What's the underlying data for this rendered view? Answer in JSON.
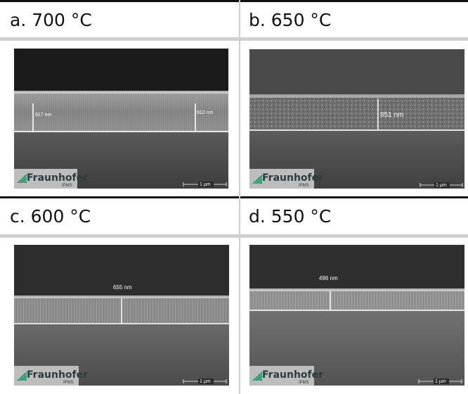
{
  "panels": [
    {
      "id": "a",
      "header": "a. 700 °C",
      "measurements": [
        "917 nm",
        "912 nm"
      ],
      "scale_bar": "1 µm",
      "logo": {
        "name": "Fraunhofer",
        "sub": "IPMS"
      }
    },
    {
      "id": "b",
      "header": "b. 650 °C",
      "measurements": [
        "851 nm"
      ],
      "scale_bar": "1 µm",
      "logo": {
        "name": "Fraunhofer",
        "sub": "IPMS"
      }
    },
    {
      "id": "c",
      "header": "c. 600 °C",
      "measurements": [
        "655 nm"
      ],
      "scale_bar": "1 µm",
      "logo": {
        "name": "Fraunhofer",
        "sub": "IPMS"
      }
    },
    {
      "id": "d",
      "header": "d. 550 °C",
      "measurements": [
        "496 nm"
      ],
      "scale_bar": "1 µm",
      "logo": {
        "name": "Fraunhofer",
        "sub": "IPMS"
      }
    }
  ],
  "colors": {
    "logo_green": "#1f9a6a",
    "grid_line": "#cfcfcf",
    "top_rule": "#111111"
  }
}
